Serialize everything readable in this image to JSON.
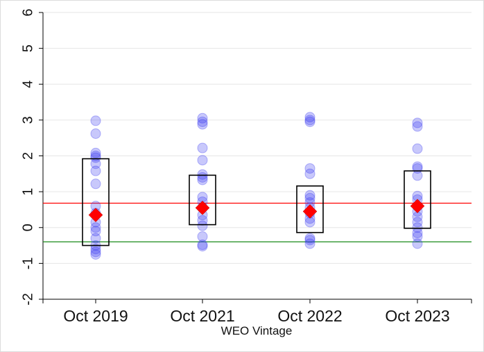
{
  "chart_data": {
    "type": "scatter",
    "title": "",
    "xlabel": "WEO Vintage",
    "ylabel": "",
    "categories": [
      "Oct 2019",
      "Oct 2021",
      "Oct 2022",
      "Oct 2023"
    ],
    "ylim": [
      -2,
      6
    ],
    "yticks": [
      "-2",
      "-1",
      "0",
      "1",
      "2",
      "3",
      "4",
      "5",
      "6"
    ],
    "grid": "horizontal",
    "legend": "none",
    "reference_lines": [
      {
        "y": 0.68,
        "color": "#ff0000"
      },
      {
        "y": -0.4,
        "color": "#1a8a1a"
      }
    ],
    "boxes": [
      {
        "low": -0.5,
        "high": 1.92
      },
      {
        "low": 0.08,
        "high": 1.46
      },
      {
        "low": -0.14,
        "high": 1.16
      },
      {
        "low": -0.02,
        "high": 1.58
      }
    ],
    "medians": [
      0.35,
      0.55,
      0.45,
      0.6
    ],
    "points": [
      [
        2.98,
        2.62,
        2.08,
        2.0,
        1.95,
        1.78,
        1.58,
        1.22,
        0.6,
        0.4,
        0.15,
        0.0,
        -0.1,
        -0.3,
        -0.5,
        -0.6,
        -0.68,
        -0.75
      ],
      [
        3.05,
        2.95,
        2.88,
        2.22,
        1.88,
        1.48,
        1.4,
        1.33,
        0.85,
        0.72,
        0.55,
        0.35,
        0.2,
        0.05,
        -0.25,
        -0.48,
        -0.52
      ],
      [
        3.08,
        3.0,
        2.95,
        1.65,
        1.5,
        0.9,
        0.82,
        0.7,
        0.55,
        0.4,
        0.25,
        0.15,
        -0.3,
        -0.35,
        -0.45
      ],
      [
        2.92,
        2.82,
        2.2,
        1.7,
        1.65,
        1.45,
        0.88,
        0.78,
        0.6,
        0.45,
        0.3,
        0.15,
        0.0,
        -0.15,
        -0.25,
        -0.45
      ]
    ],
    "colors": {
      "points": "#3a3af0",
      "median": "#ff0000",
      "box": "#000000"
    }
  }
}
